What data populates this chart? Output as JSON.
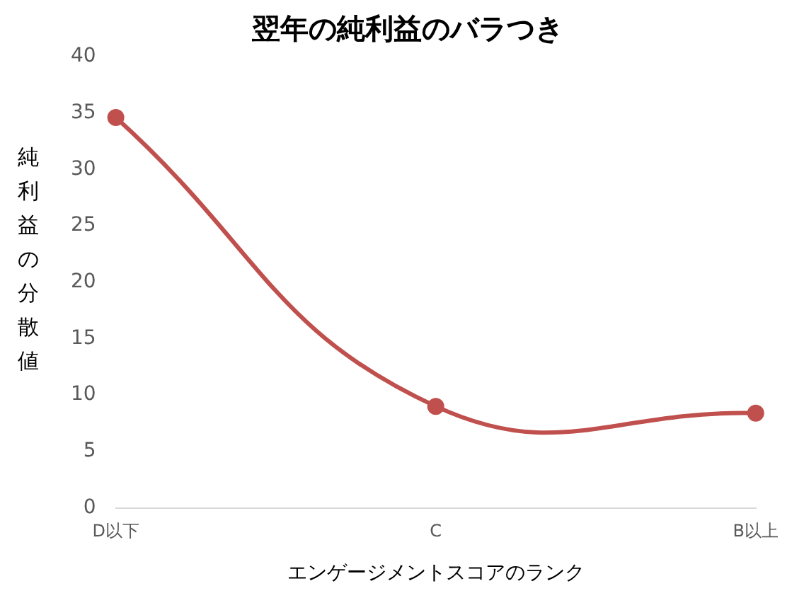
{
  "chart_data": {
    "type": "line",
    "title": "翌年の純利益のバラつき",
    "xlabel": "エンゲージメントスコアのランク",
    "ylabel": "純利益の分散値",
    "categories": [
      "D以下",
      "C",
      "B以上"
    ],
    "series": [
      {
        "color": "#c0504d",
        "values": [
          34.6,
          9.0,
          8.4
        ]
      }
    ],
    "ylim": [
      0,
      40
    ],
    "yticks": [
      0,
      5,
      10,
      15,
      20,
      25,
      30,
      35,
      40
    ],
    "grid": false,
    "legend": false,
    "marker": "circle",
    "line_style": "solid"
  }
}
